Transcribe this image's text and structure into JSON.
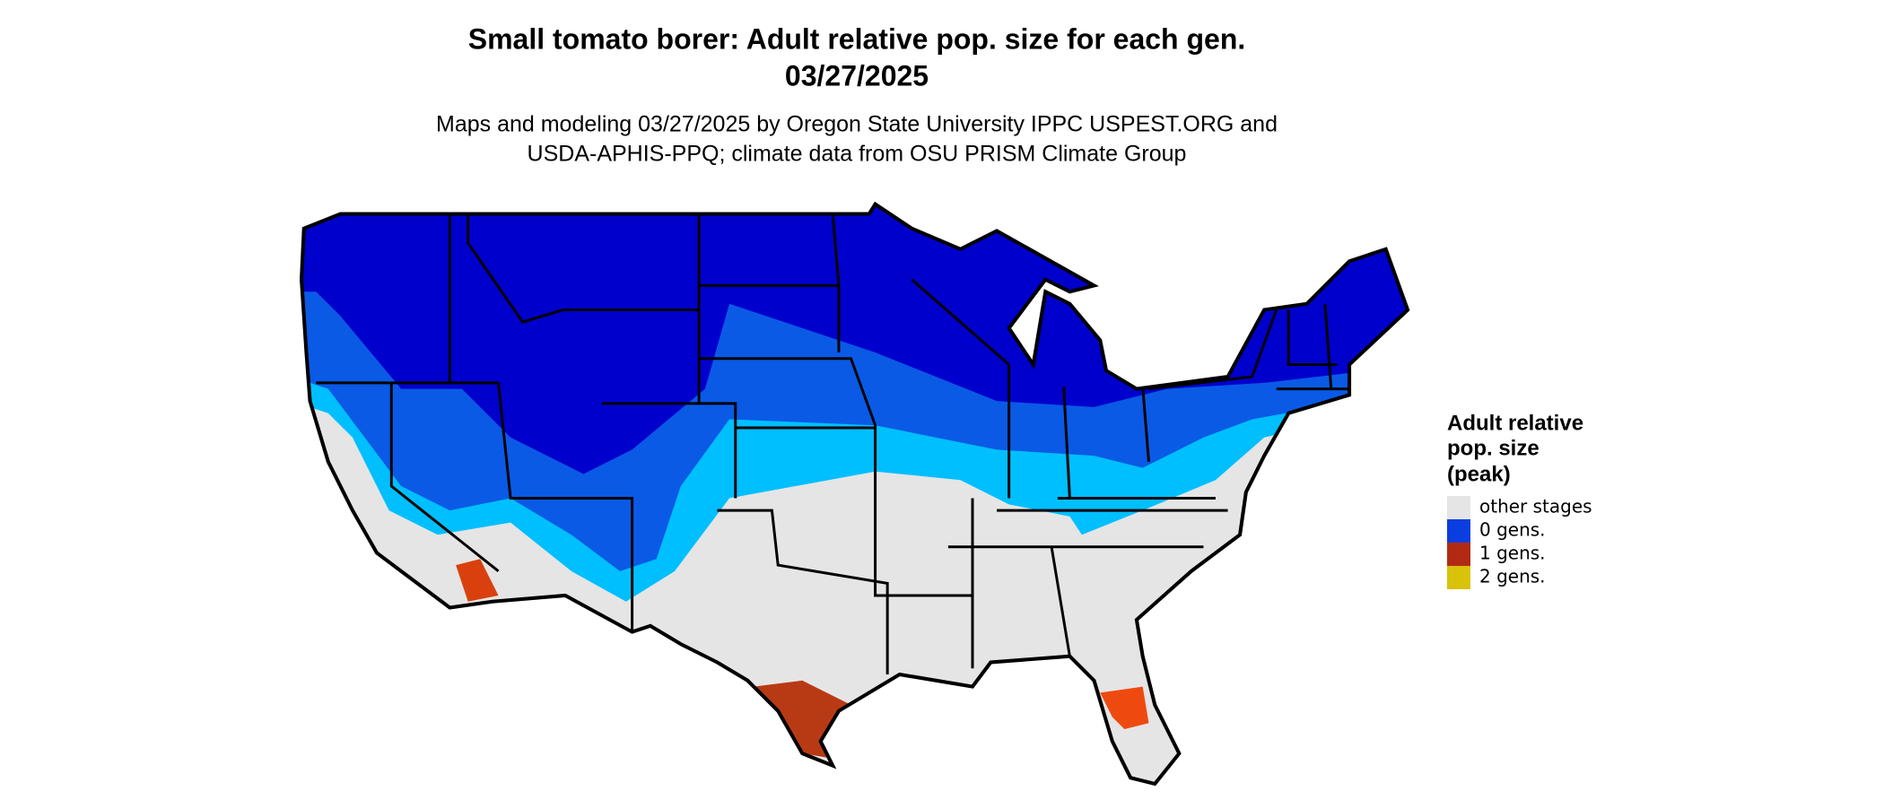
{
  "header": {
    "title": [
      "Small tomato borer: Adult relative pop. size for each gen.",
      "03/27/2025"
    ],
    "subtitle": [
      "Maps and modeling 03/27/2025 by Oregon State University IPPC USPEST.ORG and",
      "USDA-APHIS-PPQ; climate data from OSU PRISM Climate Group"
    ]
  },
  "legend": {
    "title": [
      "Adult relative",
      "pop. size",
      "(peak)"
    ],
    "items": [
      {
        "label": "other stages",
        "color": "#e5e5e5"
      },
      {
        "label": "0 gens.",
        "color": "#0a3ee0"
      },
      {
        "label": "1 gens.",
        "color": "#b22a14"
      },
      {
        "label": "2 gens.",
        "color": "#d9c20a"
      }
    ]
  }
}
